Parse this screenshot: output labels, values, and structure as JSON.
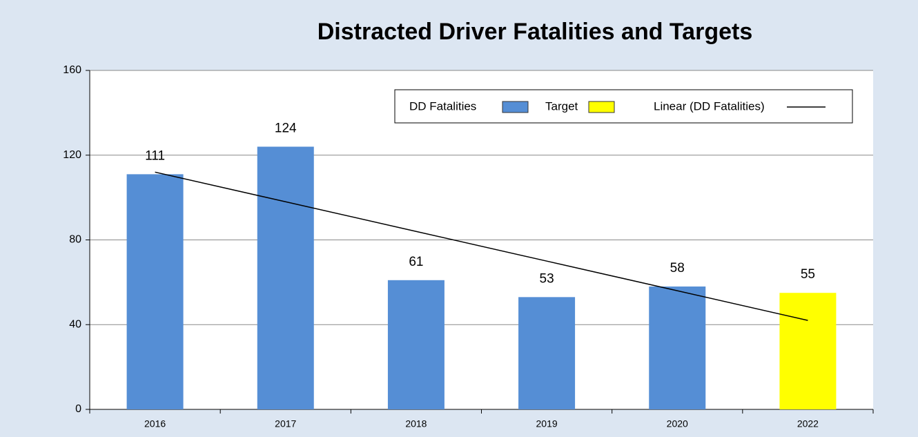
{
  "chart_data": {
    "type": "bar",
    "title": "Distracted Driver Fatalities and Targets",
    "categories": [
      "2016",
      "2017",
      "2018",
      "2019",
      "2020",
      "2022"
    ],
    "series": [
      {
        "name": "DD Fatalities",
        "color": "#558ed5",
        "values": [
          111,
          124,
          61,
          53,
          58,
          null
        ]
      },
      {
        "name": "Target",
        "color": "#ffff00",
        "values": [
          null,
          null,
          null,
          null,
          null,
          55
        ]
      },
      {
        "name": "Linear (DD Fatalities)",
        "color": "#000000",
        "type": "line",
        "values": [
          112,
          98,
          84,
          70,
          56,
          42
        ]
      }
    ],
    "ylim": [
      0,
      160
    ],
    "yticks": [
      0,
      40,
      80,
      120,
      160
    ],
    "grid": true,
    "legend": "top-right"
  }
}
